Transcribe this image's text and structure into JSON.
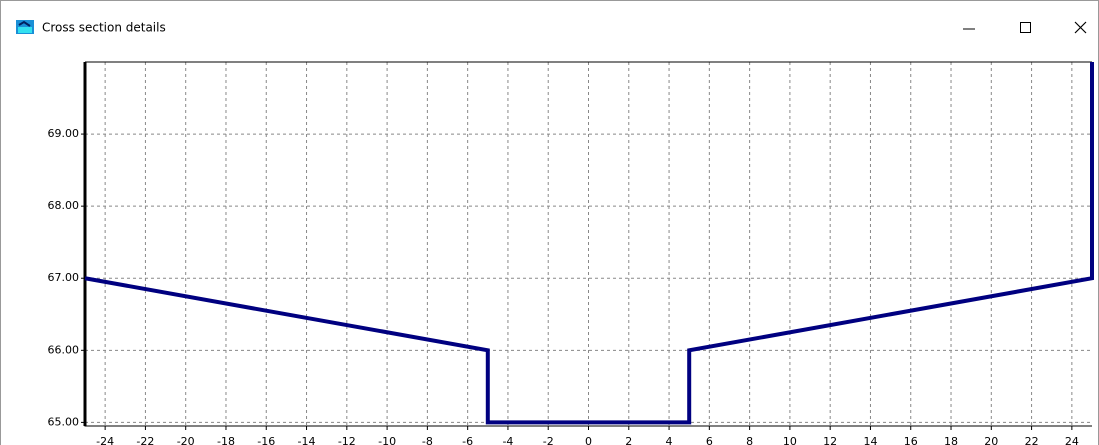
{
  "window": {
    "title": "Cross section details"
  },
  "chart_data": {
    "type": "line",
    "x": [
      -25,
      -5,
      -5,
      5,
      5,
      25,
      25
    ],
    "series": [
      {
        "color": "#000080",
        "values": [
          67,
          66,
          65,
          65,
          66,
          67,
          70
        ]
      }
    ],
    "xlim": [
      -25,
      25
    ],
    "xticks": [
      -24,
      -22,
      -20,
      -18,
      -16,
      -14,
      -12,
      -10,
      -8,
      -6,
      -4,
      -2,
      0,
      2,
      4,
      6,
      8,
      10,
      12,
      14,
      16,
      18,
      20,
      22,
      24
    ],
    "ylim": [
      64.95,
      70
    ],
    "yticks": [
      {
        "value": 65,
        "label": "65.00"
      },
      {
        "value": 66,
        "label": "66.00"
      },
      {
        "value": 67,
        "label": "67.00"
      },
      {
        "value": 68,
        "label": "68.00"
      },
      {
        "value": 69,
        "label": "69.00"
      }
    ],
    "grid": true
  }
}
